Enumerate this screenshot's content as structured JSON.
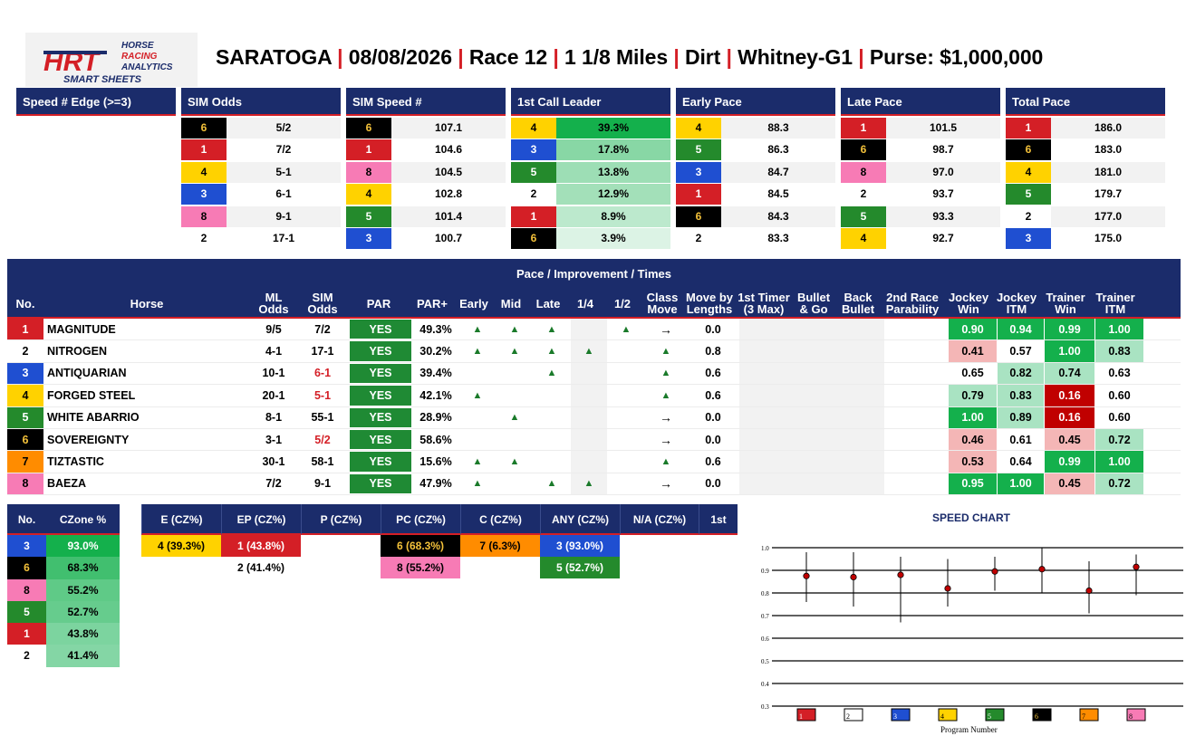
{
  "logo": {
    "line1": "HORSE",
    "line2": "RACING",
    "line3": "ANALYTICS",
    "tagline": "SMART SHEETS",
    "mark": "HRT"
  },
  "title": {
    "track": "SARATOGA",
    "date": "08/08/2026",
    "race": "Race 12",
    "distance": "1 1/8 Miles",
    "surface": "Dirt",
    "stakes": "Whitney-G1",
    "purse": "Purse: $1,000,000",
    "sep": "|"
  },
  "sections": {
    "speed_edge": "Speed # Edge (>=3)",
    "sim_odds": "SIM Odds",
    "sim_speed": "SIM Speed #",
    "first_call": "1st Call Leader",
    "early_pace": "Early Pace",
    "late_pace": "Late Pace",
    "total_pace": "Total Pace"
  },
  "colors": {
    "header_bg": "#1b2c6b",
    "accent_red": "#d41f26",
    "p1": "#d41f26",
    "p2": "#ffffff",
    "p3": "#1f4fd1",
    "p4": "#ffd200",
    "p5": "#248a2c",
    "p6": "#000000",
    "p7": "#ff8c00",
    "p8": "#f77bb5",
    "good": "#14b04c",
    "good_light": "#a9e3c2",
    "bad": "#c00000",
    "bad_light": "#f4b6b6"
  },
  "sim_odds": [
    {
      "pn": "6",
      "v": "5/2"
    },
    {
      "pn": "1",
      "v": "7/2"
    },
    {
      "pn": "4",
      "v": "5-1"
    },
    {
      "pn": "3",
      "v": "6-1"
    },
    {
      "pn": "8",
      "v": "9-1"
    },
    {
      "pn": "2",
      "v": "17-1"
    }
  ],
  "sim_speed": [
    {
      "pn": "6",
      "v": "107.1"
    },
    {
      "pn": "1",
      "v": "104.6"
    },
    {
      "pn": "8",
      "v": "104.5"
    },
    {
      "pn": "4",
      "v": "102.8"
    },
    {
      "pn": "5",
      "v": "101.4"
    },
    {
      "pn": "3",
      "v": "100.7"
    }
  ],
  "first_call": [
    {
      "pn": "4",
      "v": "39.3%",
      "heat": 1.0
    },
    {
      "pn": "3",
      "v": "17.8%",
      "heat": 0.45
    },
    {
      "pn": "5",
      "v": "13.8%",
      "heat": 0.35
    },
    {
      "pn": "2",
      "v": "12.9%",
      "heat": 0.32
    },
    {
      "pn": "1",
      "v": "8.9%",
      "heat": 0.2
    },
    {
      "pn": "6",
      "v": "3.9%",
      "heat": 0.05
    }
  ],
  "early_pace": [
    {
      "pn": "4",
      "v": "88.3"
    },
    {
      "pn": "5",
      "v": "86.3"
    },
    {
      "pn": "3",
      "v": "84.7"
    },
    {
      "pn": "1",
      "v": "84.5"
    },
    {
      "pn": "6",
      "v": "84.3"
    },
    {
      "pn": "2",
      "v": "83.3"
    }
  ],
  "late_pace": [
    {
      "pn": "1",
      "v": "101.5"
    },
    {
      "pn": "6",
      "v": "98.7"
    },
    {
      "pn": "8",
      "v": "97.0"
    },
    {
      "pn": "2",
      "v": "93.7"
    },
    {
      "pn": "5",
      "v": "93.3"
    },
    {
      "pn": "4",
      "v": "92.7"
    }
  ],
  "total_pace": [
    {
      "pn": "1",
      "v": "186.0"
    },
    {
      "pn": "6",
      "v": "183.0"
    },
    {
      "pn": "4",
      "v": "181.0"
    },
    {
      "pn": "5",
      "v": "179.7"
    },
    {
      "pn": "2",
      "v": "177.0"
    },
    {
      "pn": "3",
      "v": "175.0"
    }
  ],
  "main": {
    "title": "Pace / Improvement / Times",
    "headers": [
      "No.",
      "Horse",
      "ML Odds",
      "SIM Odds",
      "PAR",
      "PAR+",
      "Early",
      "Mid",
      "Late",
      "1/4",
      "1/2",
      "Class Move",
      "Move by Lengths",
      "1st Timer (3 Max)",
      "Bullet & Go",
      "Back Bullet",
      "2nd Race Parability",
      "Jockey Win",
      "Jockey ITM",
      "Trainer Win",
      "Trainer ITM"
    ],
    "rows": [
      {
        "no": "1",
        "horse": "MAGNITUDE",
        "ml": "9/5",
        "sim": "7/2",
        "simRed": false,
        "par": "YES",
        "parplus": "49.3%",
        "early": "▲",
        "mid": "▲",
        "late": "▲",
        "q": "",
        "h": "▲",
        "cls": "→",
        "mbl": "0.0",
        "jw": "0.90",
        "ji": "0.94",
        "tw": "0.99",
        "ti": "1.00",
        "jwc": "good",
        "jic": "good",
        "twc": "good",
        "tic": "good"
      },
      {
        "no": "2",
        "horse": "NITROGEN",
        "ml": "4-1",
        "sim": "17-1",
        "simRed": false,
        "par": "YES",
        "parplus": "30.2%",
        "early": "▲",
        "mid": "▲",
        "late": "▲",
        "q": "▲",
        "h": "",
        "cls": "▲",
        "mbl": "0.8",
        "jw": "0.41",
        "ji": "0.57",
        "tw": "1.00",
        "ti": "0.83",
        "jwc": "badl",
        "jic": "none",
        "twc": "good",
        "tic": "goodl"
      },
      {
        "no": "3",
        "horse": "ANTIQUARIAN",
        "ml": "10-1",
        "sim": "6-1",
        "simRed": true,
        "par": "YES",
        "parplus": "39.4%",
        "early": "",
        "mid": "",
        "late": "▲",
        "q": "",
        "h": "",
        "cls": "▲",
        "mbl": "0.6",
        "jw": "0.65",
        "ji": "0.82",
        "tw": "0.74",
        "ti": "0.63",
        "jwc": "none",
        "jic": "goodl",
        "twc": "goodl",
        "tic": "none"
      },
      {
        "no": "4",
        "horse": "FORGED STEEL",
        "ml": "20-1",
        "sim": "5-1",
        "simRed": true,
        "par": "YES",
        "parplus": "42.1%",
        "early": "▲",
        "mid": "",
        "late": "",
        "q": "",
        "h": "",
        "cls": "▲",
        "mbl": "0.6",
        "jw": "0.79",
        "ji": "0.83",
        "tw": "0.16",
        "ti": "0.60",
        "jwc": "goodl",
        "jic": "goodl",
        "twc": "bad",
        "tic": "none"
      },
      {
        "no": "5",
        "horse": "WHITE ABARRIO",
        "ml": "8-1",
        "sim": "55-1",
        "simRed": false,
        "par": "YES",
        "parplus": "28.9%",
        "early": "",
        "mid": "▲",
        "late": "",
        "q": "",
        "h": "",
        "cls": "→",
        "mbl": "0.0",
        "jw": "1.00",
        "ji": "0.89",
        "tw": "0.16",
        "ti": "0.60",
        "jwc": "good",
        "jic": "goodl",
        "twc": "bad",
        "tic": "none"
      },
      {
        "no": "6",
        "horse": "SOVEREIGNTY",
        "ml": "3-1",
        "sim": "5/2",
        "simRed": true,
        "par": "YES",
        "parplus": "58.6%",
        "early": "",
        "mid": "",
        "late": "",
        "q": "",
        "h": "",
        "cls": "→",
        "mbl": "0.0",
        "jw": "0.46",
        "ji": "0.61",
        "tw": "0.45",
        "ti": "0.72",
        "jwc": "badl",
        "jic": "none",
        "twc": "badl",
        "tic": "goodl"
      },
      {
        "no": "7",
        "horse": "TIZTASTIC",
        "ml": "30-1",
        "sim": "58-1",
        "simRed": false,
        "par": "YES",
        "parplus": "15.6%",
        "early": "▲",
        "mid": "▲",
        "late": "",
        "q": "",
        "h": "",
        "cls": "▲",
        "mbl": "0.6",
        "jw": "0.53",
        "ji": "0.64",
        "tw": "0.99",
        "ti": "1.00",
        "jwc": "badl",
        "jic": "none",
        "twc": "good",
        "tic": "good"
      },
      {
        "no": "8",
        "horse": "BAEZA",
        "ml": "7/2",
        "sim": "9-1",
        "simRed": false,
        "par": "YES",
        "parplus": "47.9%",
        "early": "▲",
        "mid": "",
        "late": "▲",
        "q": "▲",
        "h": "",
        "cls": "→",
        "mbl": "0.0",
        "jw": "0.95",
        "ji": "1.00",
        "tw": "0.45",
        "ti": "0.72",
        "jwc": "good",
        "jic": "good",
        "twc": "badl",
        "tic": "goodl"
      }
    ]
  },
  "czone": {
    "headers": [
      "No.",
      "CZone %"
    ],
    "rows": [
      {
        "pn": "3",
        "v": "93.0%",
        "heat": 1.0
      },
      {
        "pn": "6",
        "v": "68.3%",
        "heat": 0.7
      },
      {
        "pn": "8",
        "v": "55.2%",
        "heat": 0.5
      },
      {
        "pn": "5",
        "v": "52.7%",
        "heat": 0.45
      },
      {
        "pn": "1",
        "v": "43.8%",
        "heat": 0.3
      },
      {
        "pn": "2",
        "v": "41.4%",
        "heat": 0.25
      }
    ]
  },
  "cz_groups": {
    "headers": [
      "E (CZ%)",
      "EP (CZ%)",
      "P (CZ%)",
      "PC (CZ%)",
      "C (CZ%)",
      "ANY (CZ%)",
      "N/A (CZ%)",
      "1st"
    ],
    "cells": [
      {
        "col": 0,
        "row": 0,
        "pn": "4",
        "text": "4 (39.3%)"
      },
      {
        "col": 1,
        "row": 0,
        "pn": "1",
        "text": "1 (43.8%)"
      },
      {
        "col": 1,
        "row": 1,
        "pn": "2",
        "text": "2 (41.4%)"
      },
      {
        "col": 3,
        "row": 0,
        "pn": "6",
        "text": "6 (68.3%)"
      },
      {
        "col": 3,
        "row": 1,
        "pn": "8",
        "text": "8 (55.2%)"
      },
      {
        "col": 4,
        "row": 0,
        "pn": "7",
        "text": "7 (6.3%)"
      },
      {
        "col": 5,
        "row": 0,
        "pn": "3",
        "text": "3 (93.0%)"
      },
      {
        "col": 5,
        "row": 1,
        "pn": "5",
        "text": "5 (52.7%)"
      }
    ]
  },
  "chart_data": {
    "type": "scatter",
    "title": "SPEED CHART",
    "xlabel": "Program Number",
    "ylabel": "",
    "ylim": [
      0.3,
      1.0
    ],
    "yticks": [
      "1.0",
      "0.9",
      "0.8",
      "0.7",
      "0.6",
      "0.5",
      "0.4",
      "0.3"
    ],
    "categories": [
      "1",
      "2",
      "3",
      "4",
      "5",
      "6",
      "7",
      "8"
    ],
    "points": [
      {
        "x": "1",
        "y": 0.875,
        "low": 0.76,
        "high": 0.98
      },
      {
        "x": "2",
        "y": 0.87,
        "low": 0.74,
        "high": 0.98
      },
      {
        "x": "3",
        "y": 0.88,
        "low": 0.67,
        "high": 0.96
      },
      {
        "x": "4",
        "y": 0.82,
        "low": 0.74,
        "high": 0.95
      },
      {
        "x": "5",
        "y": 0.895,
        "low": 0.81,
        "high": 0.96
      },
      {
        "x": "6",
        "y": 0.905,
        "low": 0.8,
        "high": 1.0
      },
      {
        "x": "7",
        "y": 0.81,
        "low": 0.71,
        "high": 0.94
      },
      {
        "x": "8",
        "y": 0.915,
        "low": 0.79,
        "high": 0.97
      }
    ]
  }
}
